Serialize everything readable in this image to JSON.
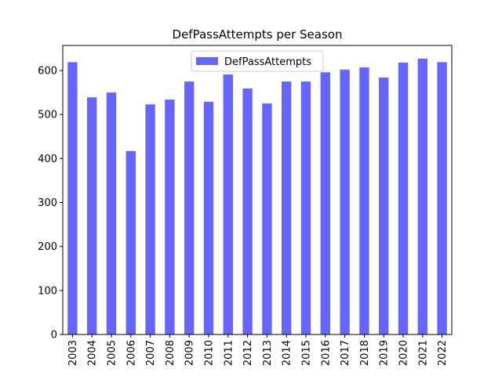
{
  "chart_data": {
    "type": "bar",
    "title": "DefPassAttempts per Season",
    "categories": [
      "2003",
      "2004",
      "2005",
      "2006",
      "2007",
      "2008",
      "2009",
      "2010",
      "2011",
      "2012",
      "2013",
      "2014",
      "2015",
      "2016",
      "2017",
      "2018",
      "2019",
      "2020",
      "2021",
      "2022"
    ],
    "series": [
      {
        "name": "DefPassAttempts",
        "color": "#6666ff",
        "values": [
          619,
          539,
          550,
          417,
          523,
          534,
          575,
          529,
          591,
          559,
          525,
          575,
          575,
          596,
          602,
          607,
          584,
          618,
          627,
          619
        ]
      }
    ],
    "ylim": [
      0,
      657
    ],
    "yticks": [
      0,
      100,
      200,
      300,
      400,
      500,
      600
    ],
    "grid": false,
    "legend": "upper center"
  }
}
